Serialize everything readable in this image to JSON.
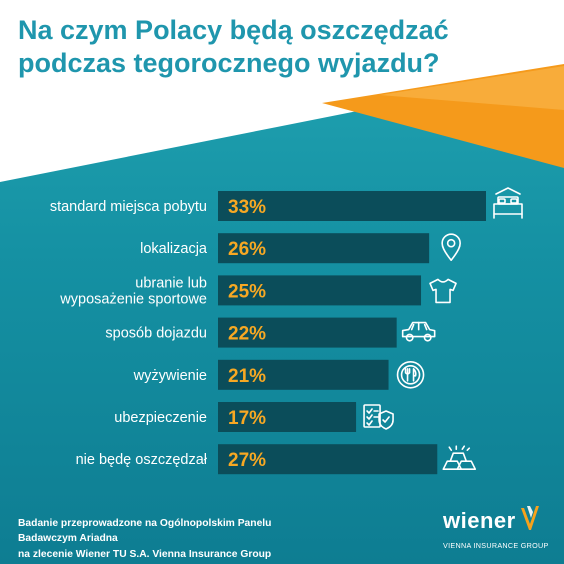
{
  "title": "Na czym Polacy będą oszczędzać podczas tegorocznego wyjazdu?",
  "colors": {
    "bar": "#0b4d5a",
    "value_text": "#f7a823",
    "label_text": "#ffffff",
    "title_text": "#1f96ad",
    "accent_orange": "#f7a21b"
  },
  "chart_data": {
    "type": "bar",
    "orientation": "horizontal",
    "categories": [
      "standard miejsca pobytu",
      "lokalizacja",
      "ubranie lub wyposażenie sportowe",
      "sposób dojazdu",
      "wyżywienie",
      "ubezpieczenie",
      "nie będę oszczędzał"
    ],
    "values": [
      33,
      26,
      25,
      22,
      21,
      17,
      27
    ],
    "value_labels": [
      "33%",
      "26%",
      "25%",
      "22%",
      "21%",
      "17%",
      "27%"
    ],
    "category_label_lines": [
      [
        "standard miejsca pobytu"
      ],
      [
        "lokalizacja"
      ],
      [
        "ubranie lub",
        "wyposażenie sportowe"
      ],
      [
        "sposób dojazdu"
      ],
      [
        "wyżywienie"
      ],
      [
        "ubezpieczenie"
      ],
      [
        "nie będę oszczędzał"
      ]
    ],
    "icons": [
      "bed-icon",
      "location-pin-icon",
      "tshirt-icon",
      "car-icon",
      "plate-cutlery-icon",
      "insurance-checklist-icon",
      "gold-bars-icon"
    ],
    "xlim": [
      0,
      33
    ],
    "grid": false,
    "legend": "none"
  },
  "footer": {
    "line1": "Badanie przeprowadzone na Ogólnopolskim Panelu Badawczym Ariadna",
    "line2": "na zlecenie Wiener TU S.A. Vienna Insurance Group"
  },
  "logo": {
    "name": "wiener",
    "subtitle": "VIENNA INSURANCE GROUP"
  }
}
